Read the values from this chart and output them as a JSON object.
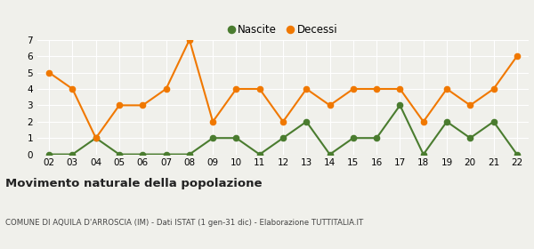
{
  "years": [
    "02",
    "03",
    "04",
    "05",
    "06",
    "07",
    "08",
    "09",
    "10",
    "11",
    "12",
    "13",
    "14",
    "15",
    "16",
    "17",
    "18",
    "19",
    "20",
    "21",
    "22"
  ],
  "nascite": [
    0,
    0,
    1,
    0,
    0,
    0,
    0,
    1,
    1,
    0,
    1,
    2,
    0,
    1,
    1,
    3,
    0,
    2,
    1,
    2,
    0
  ],
  "decessi": [
    5,
    4,
    1,
    3,
    3,
    4,
    7,
    2,
    4,
    4,
    2,
    4,
    3,
    4,
    4,
    4,
    2,
    4,
    3,
    4,
    6
  ],
  "nascite_color": "#4a7c2f",
  "decessi_color": "#f07800",
  "bg_color": "#f0f0eb",
  "grid_color": "#ffffff",
  "title": "Movimento naturale della popolazione",
  "subtitle": "COMUNE DI AQUILA D'ARROSCIA (IM) - Dati ISTAT (1 gen-31 dic) - Elaborazione TUTTITALIA.IT",
  "legend_nascite": "Nascite",
  "legend_decessi": "Decessi",
  "ylim": [
    0,
    7
  ],
  "yticks": [
    0,
    1,
    2,
    3,
    4,
    5,
    6,
    7
  ],
  "marker_size": 4.5,
  "line_width": 1.5
}
